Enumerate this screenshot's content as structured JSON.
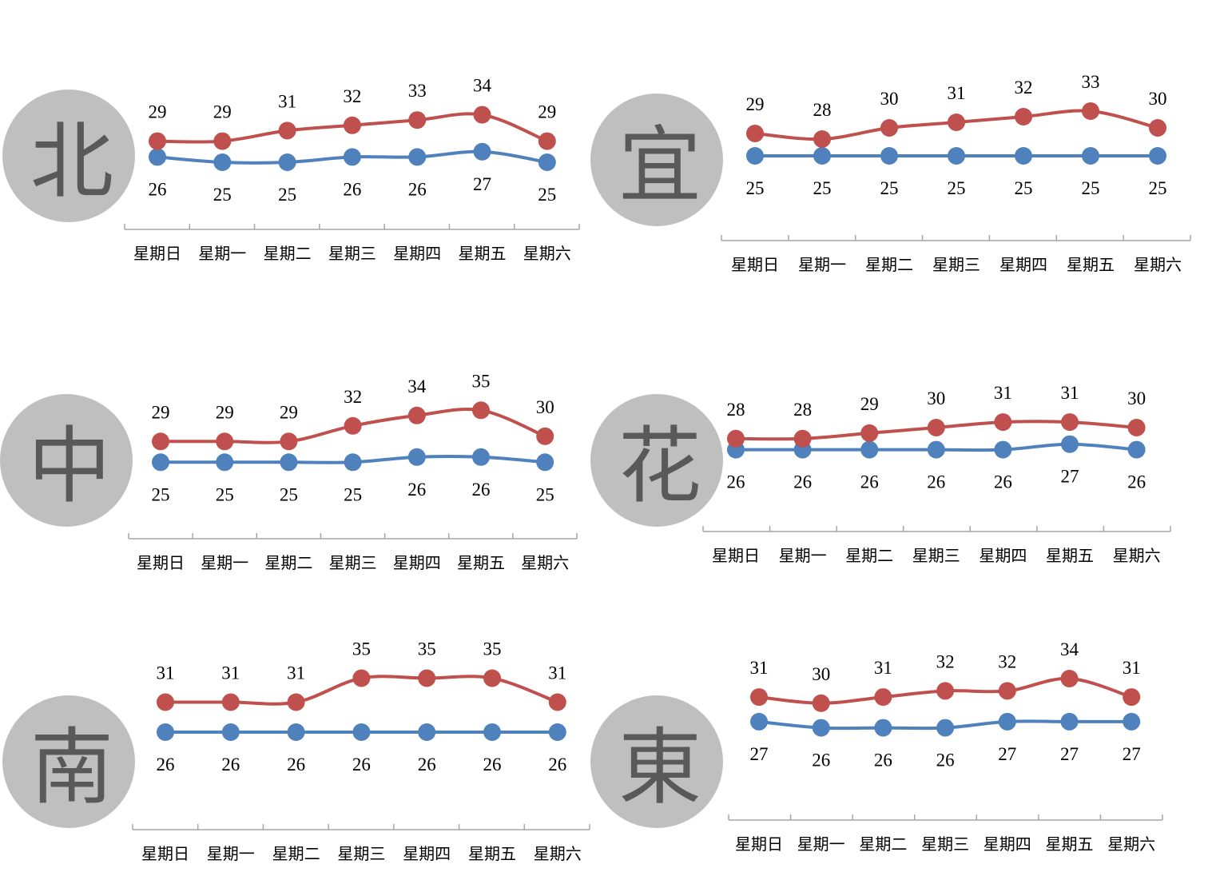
{
  "colors": {
    "high": "#c0504d",
    "low": "#4f81bd",
    "circle": "#bfbfbf",
    "circle_text": "#595959",
    "axis": "#a6a6a6"
  },
  "chart_data": [
    {
      "type": "line",
      "city": "北",
      "categories": [
        "星期日",
        "星期一",
        "星期二",
        "星期三",
        "星期四",
        "星期五",
        "星期六"
      ],
      "series": [
        {
          "values": [
            29,
            29,
            31,
            32,
            33,
            34,
            29
          ],
          "color": "#c0504d"
        },
        {
          "values": [
            26,
            25,
            25,
            26,
            26,
            27,
            25
          ],
          "color": "#4f81bd"
        }
      ]
    },
    {
      "type": "line",
      "city": "宜",
      "categories": [
        "星期日",
        "星期一",
        "星期二",
        "星期三",
        "星期四",
        "星期五",
        "星期六"
      ],
      "series": [
        {
          "values": [
            29,
            28,
            30,
            31,
            32,
            33,
            30
          ],
          "color": "#c0504d"
        },
        {
          "values": [
            25,
            25,
            25,
            25,
            25,
            25,
            25
          ],
          "color": "#4f81bd"
        }
      ]
    },
    {
      "type": "line",
      "city": "中",
      "categories": [
        "星期日",
        "星期一",
        "星期二",
        "星期三",
        "星期四",
        "星期五",
        "星期六"
      ],
      "series": [
        {
          "values": [
            29,
            29,
            29,
            32,
            34,
            35,
            30
          ],
          "color": "#c0504d"
        },
        {
          "values": [
            25,
            25,
            25,
            25,
            26,
            26,
            25
          ],
          "color": "#4f81bd"
        }
      ]
    },
    {
      "type": "line",
      "city": "花",
      "categories": [
        "星期日",
        "星期一",
        "星期二",
        "星期三",
        "星期四",
        "星期五",
        "星期六"
      ],
      "series": [
        {
          "values": [
            28,
            28,
            29,
            30,
            31,
            31,
            30
          ],
          "color": "#c0504d"
        },
        {
          "values": [
            26,
            26,
            26,
            26,
            26,
            27,
            26
          ],
          "color": "#4f81bd"
        }
      ]
    },
    {
      "type": "line",
      "city": "南",
      "categories": [
        "星期日",
        "星期一",
        "星期二",
        "星期三",
        "星期四",
        "星期五",
        "星期六"
      ],
      "series": [
        {
          "values": [
            31,
            31,
            31,
            35,
            35,
            35,
            31
          ],
          "color": "#c0504d"
        },
        {
          "values": [
            26,
            26,
            26,
            26,
            26,
            26,
            26
          ],
          "color": "#4f81bd"
        }
      ]
    },
    {
      "type": "line",
      "city": "東",
      "categories": [
        "星期日",
        "星期一",
        "星期二",
        "星期三",
        "星期四",
        "星期五",
        "星期六"
      ],
      "series": [
        {
          "values": [
            31,
            30,
            31,
            32,
            32,
            34,
            31
          ],
          "color": "#c0504d"
        },
        {
          "values": [
            27,
            26,
            26,
            26,
            27,
            27,
            27
          ],
          "color": "#4f81bd"
        }
      ]
    }
  ]
}
